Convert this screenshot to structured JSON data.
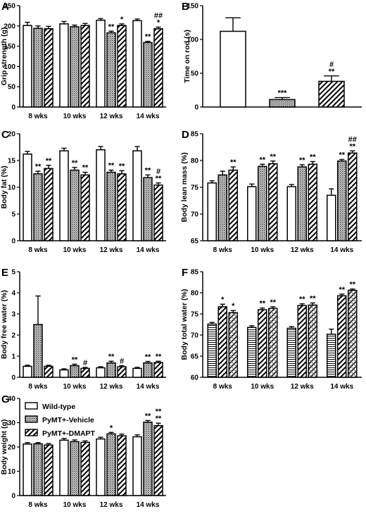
{
  "chart_data": [
    {
      "panel": "A",
      "type": "bar",
      "ylabel": "Grip strength (g)",
      "ylim": [
        0,
        250
      ],
      "yticks": [
        0,
        50,
        100,
        150,
        200,
        250
      ],
      "categories": [
        "8 wks",
        "10 wks",
        "12 wks",
        "14 wks"
      ],
      "series": [
        {
          "values": [
            201,
            205,
            214,
            213
          ],
          "errors": [
            8,
            6,
            4,
            4
          ],
          "pattern": "open"
        },
        {
          "values": [
            194,
            198,
            183,
            159
          ],
          "errors": [
            6,
            4,
            4,
            3
          ],
          "pattern": "dots"
        },
        {
          "values": [
            193,
            201,
            201,
            193
          ],
          "errors": [
            6,
            5,
            4,
            4
          ],
          "pattern": "diag"
        }
      ],
      "annotations": [
        {
          "cat": 2,
          "series": 1,
          "text": "**"
        },
        {
          "cat": 2,
          "series": 2,
          "text": "*"
        },
        {
          "cat": 3,
          "series": 1,
          "text": "**"
        },
        {
          "cat": 3,
          "series": 2,
          "text": "*"
        },
        {
          "cat": 3,
          "series": 2,
          "text": "##"
        }
      ]
    },
    {
      "panel": "B",
      "type": "bar",
      "ylabel": "Time on rod (s)",
      "ylim": [
        0,
        150
      ],
      "yticks": [
        0,
        50,
        100,
        150
      ],
      "categories": [
        ""
      ],
      "series": [
        {
          "values": [
            112
          ],
          "errors": [
            20
          ],
          "pattern": "open"
        },
        {
          "values": [
            11
          ],
          "errors": [
            3
          ],
          "pattern": "dots"
        },
        {
          "values": [
            38
          ],
          "errors": [
            8
          ],
          "pattern": "diag"
        }
      ],
      "annotations": [
        {
          "cat": 0,
          "series": 1,
          "text": "***"
        },
        {
          "cat": 0,
          "series": 2,
          "text": "**"
        },
        {
          "cat": 0,
          "series": 2,
          "text": "#"
        }
      ]
    },
    {
      "panel": "C",
      "type": "bar",
      "ylabel": "Body fat (%)",
      "ylim": [
        0,
        20
      ],
      "yticks": [
        0,
        5,
        10,
        15,
        20
      ],
      "categories": [
        "8 wks",
        "10 wks",
        "12 wks",
        "14 wks"
      ],
      "series": [
        {
          "values": [
            16.2,
            16.8,
            17.0,
            16.8
          ],
          "errors": [
            0.5,
            0.5,
            0.6,
            0.8
          ],
          "pattern": "open"
        },
        {
          "values": [
            12.5,
            13.2,
            12.8,
            11.8
          ],
          "errors": [
            0.5,
            0.5,
            0.4,
            0.5
          ],
          "pattern": "dots"
        },
        {
          "values": [
            13.5,
            12.3,
            12.5,
            10.4
          ],
          "errors": [
            0.6,
            0.5,
            0.6,
            0.4
          ],
          "pattern": "diag"
        }
      ],
      "annotations": [
        {
          "cat": 0,
          "series": 1,
          "text": "**"
        },
        {
          "cat": 0,
          "series": 2,
          "text": "**"
        },
        {
          "cat": 1,
          "series": 1,
          "text": "**"
        },
        {
          "cat": 1,
          "series": 2,
          "text": "**"
        },
        {
          "cat": 2,
          "series": 1,
          "text": "**"
        },
        {
          "cat": 2,
          "series": 2,
          "text": "**"
        },
        {
          "cat": 3,
          "series": 1,
          "text": "**"
        },
        {
          "cat": 3,
          "series": 2,
          "text": "**"
        },
        {
          "cat": 3,
          "series": 2,
          "text": "#"
        }
      ]
    },
    {
      "panel": "D",
      "type": "bar",
      "ylabel": "Body lean mass (%)",
      "ylim": [
        65,
        85
      ],
      "yticks": [
        65,
        70,
        75,
        80,
        85
      ],
      "categories": [
        "8 wks",
        "10 wks",
        "12 wks",
        "14 wks"
      ],
      "series": [
        {
          "values": [
            75.8,
            75.1,
            75.1,
            73.5
          ],
          "errors": [
            0.4,
            0.5,
            0.4,
            1.2
          ],
          "pattern": "open"
        },
        {
          "values": [
            77.3,
            78.9,
            78.8,
            79.9
          ],
          "errors": [
            0.7,
            0.4,
            0.4,
            0.3
          ],
          "pattern": "dots"
        },
        {
          "values": [
            78.2,
            79.4,
            79.3,
            81.4
          ],
          "errors": [
            0.6,
            0.5,
            0.5,
            0.4
          ],
          "pattern": "diag"
        }
      ],
      "annotations": [
        {
          "cat": 0,
          "series": 2,
          "text": "**"
        },
        {
          "cat": 1,
          "series": 1,
          "text": "**"
        },
        {
          "cat": 1,
          "series": 2,
          "text": "**"
        },
        {
          "cat": 2,
          "series": 1,
          "text": "**"
        },
        {
          "cat": 2,
          "series": 2,
          "text": "**"
        },
        {
          "cat": 3,
          "series": 1,
          "text": "**"
        },
        {
          "cat": 3,
          "series": 2,
          "text": "**"
        },
        {
          "cat": 3,
          "series": 2,
          "text": "##"
        }
      ]
    },
    {
      "panel": "E",
      "type": "bar",
      "ylabel": "Body free water (%)",
      "ylim": [
        0,
        5
      ],
      "yticks": [
        0,
        1,
        2,
        3,
        4,
        5
      ],
      "categories": [
        "8 wks",
        "10 wks",
        "12 wks",
        "14 wks"
      ],
      "series": [
        {
          "values": [
            0.52,
            0.35,
            0.45,
            0.42
          ],
          "errors": [
            0.05,
            0.05,
            0.05,
            0.05
          ],
          "pattern": "open"
        },
        {
          "values": [
            2.5,
            0.55,
            0.68,
            0.68
          ],
          "errors": [
            1.35,
            0.07,
            0.08,
            0.07
          ],
          "pattern": "dots"
        },
        {
          "values": [
            0.52,
            0.42,
            0.5,
            0.7
          ],
          "errors": [
            0.05,
            0.05,
            0.05,
            0.06
          ],
          "pattern": "diag"
        }
      ],
      "annotations": [
        {
          "cat": 1,
          "series": 1,
          "text": "**"
        },
        {
          "cat": 1,
          "series": 2,
          "text": "#"
        },
        {
          "cat": 2,
          "series": 1,
          "text": "**"
        },
        {
          "cat": 2,
          "series": 2,
          "text": "#"
        },
        {
          "cat": 3,
          "series": 1,
          "text": "**"
        },
        {
          "cat": 3,
          "series": 2,
          "text": "**"
        }
      ]
    },
    {
      "panel": "F",
      "type": "bar",
      "ylabel": "Body total water (%)",
      "ylim": [
        60,
        85
      ],
      "yticks": [
        60,
        65,
        70,
        75,
        80,
        85
      ],
      "categories": [
        "8 wks",
        "10 wks",
        "12 wks",
        "14 wks"
      ],
      "series": [
        {
          "values": [
            72.6,
            71.8,
            71.6,
            70.2
          ],
          "errors": [
            0.4,
            0.4,
            0.4,
            1.2
          ],
          "pattern": "hlines"
        },
        {
          "values": [
            76.7,
            76.0,
            77.0,
            79.3
          ],
          "errors": [
            0.6,
            0.4,
            0.4,
            0.4
          ],
          "pattern": "diag"
        },
        {
          "values": [
            75.3,
            76.3,
            77.1,
            80.6
          ],
          "errors": [
            0.5,
            0.4,
            0.5,
            0.3
          ],
          "pattern": "cross"
        }
      ],
      "annotations": [
        {
          "cat": 0,
          "series": 1,
          "text": "*"
        },
        {
          "cat": 0,
          "series": 2,
          "text": "*"
        },
        {
          "cat": 1,
          "series": 1,
          "text": "**"
        },
        {
          "cat": 1,
          "series": 2,
          "text": "**"
        },
        {
          "cat": 2,
          "series": 1,
          "text": "**"
        },
        {
          "cat": 2,
          "series": 2,
          "text": "**"
        },
        {
          "cat": 3,
          "series": 1,
          "text": "**"
        },
        {
          "cat": 3,
          "series": 2,
          "text": "**"
        }
      ]
    },
    {
      "panel": "G",
      "type": "bar",
      "ylabel": "Body weight (g)",
      "ylim": [
        0,
        40
      ],
      "yticks": [
        0,
        10,
        20,
        30,
        40
      ],
      "categories": [
        "8 wks",
        "10 wks",
        "12 wks",
        "14 wks"
      ],
      "series": [
        {
          "name": "Wild-type",
          "values": [
            21.2,
            22.8,
            23.3,
            24.2
          ],
          "errors": [
            0.6,
            0.7,
            0.7,
            0.8
          ],
          "pattern": "open"
        },
        {
          "name": "PyMT+-Vehicle",
          "values": [
            21.3,
            22.2,
            25.4,
            30.2
          ],
          "errors": [
            0.5,
            0.7,
            0.6,
            0.7
          ],
          "pattern": "dots"
        },
        {
          "name": "PyMT+-DMAPT",
          "values": [
            20.8,
            21.9,
            24.6,
            28.8
          ],
          "errors": [
            0.6,
            0.6,
            0.7,
            1.0
          ],
          "pattern": "diag"
        }
      ],
      "annotations": [
        {
          "cat": 2,
          "series": 1,
          "text": "*"
        },
        {
          "cat": 3,
          "series": 1,
          "text": "**"
        },
        {
          "cat": 3,
          "series": 2,
          "text": "**"
        },
        {
          "cat": 3,
          "series": 2,
          "text": "**"
        }
      ],
      "legend": {
        "placement": "top-left"
      }
    }
  ]
}
